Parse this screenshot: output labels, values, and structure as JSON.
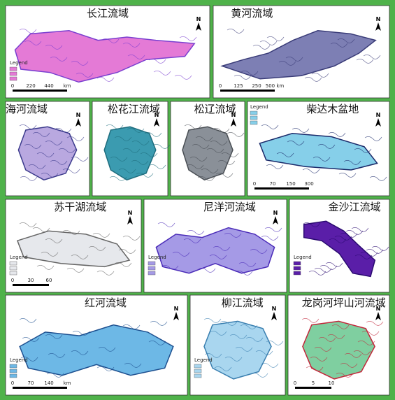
{
  "panels": [
    {
      "title": "长江流域",
      "legend": "Legend",
      "scale": [
        "0",
        "220",
        "440",
        "km"
      ],
      "north": "N"
    },
    {
      "title": "黄河流域",
      "scale": [
        "0",
        "125",
        "250",
        "500 km"
      ],
      "north": "N"
    },
    {
      "title": "海河流域",
      "north": "N"
    },
    {
      "title": "松花江流域",
      "north": "N"
    },
    {
      "title": "松辽流域",
      "north": "N"
    },
    {
      "title": "柴达木盆地",
      "legend": "Legend",
      "scale": [
        "0",
        "70",
        "150",
        "300"
      ],
      "north": "N"
    },
    {
      "title": "苏干湖流域",
      "legend": "Legend",
      "scale": [
        "0",
        "30",
        "60"
      ],
      "north": "N"
    },
    {
      "title": "尼洋河流域",
      "legend": "Legend",
      "north": "N"
    },
    {
      "title": "金沙江流域",
      "legend": "Legend"
    },
    {
      "title": "红河流域",
      "legend": "Legend",
      "scale": [
        "0",
        "70",
        "140",
        "km"
      ],
      "north": "N"
    },
    {
      "title": "柳江流域",
      "legend": "Legend",
      "north": "N"
    },
    {
      "title": "龙岗河坪山河流域",
      "scale": [
        "0",
        "5",
        "10"
      ],
      "north": "N"
    }
  ]
}
